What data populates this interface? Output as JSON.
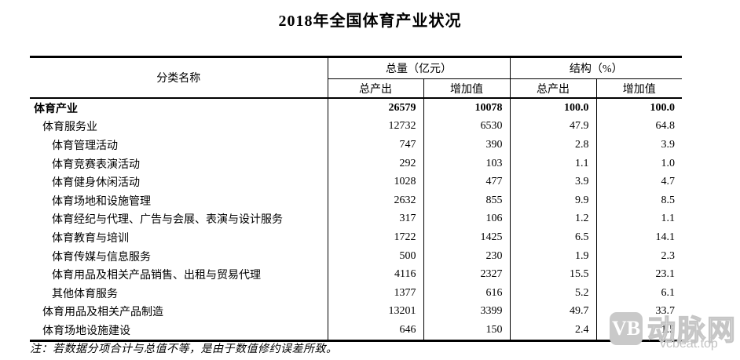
{
  "page": {
    "title": "2018年全国体育产业状况"
  },
  "table": {
    "header": {
      "category": "分类名称",
      "group_total": "总量（亿元）",
      "group_structure": "结构（%）",
      "sub_out_amt": "总产出",
      "sub_add_amt": "增加值",
      "sub_out_pct": "总产出",
      "sub_add_pct": "增加值"
    },
    "rows": [
      {
        "name": "体育产业",
        "out": "26579",
        "add": "10078",
        "pout": "100.0",
        "padd": "100.0"
      },
      {
        "name": "体育服务业",
        "out": "12732",
        "add": "6530",
        "pout": "47.9",
        "padd": "64.8"
      },
      {
        "name": "体育管理活动",
        "out": "747",
        "add": "390",
        "pout": "2.8",
        "padd": "3.9"
      },
      {
        "name": "体育竞赛表演活动",
        "out": "292",
        "add": "103",
        "pout": "1.1",
        "padd": "1.0"
      },
      {
        "name": "体育健身休闲活动",
        "out": "1028",
        "add": "477",
        "pout": "3.9",
        "padd": "4.7"
      },
      {
        "name": "体育场地和设施管理",
        "out": "2632",
        "add": "855",
        "pout": "9.9",
        "padd": "8.5"
      },
      {
        "name": "体育经纪与代理、广告与会展、表演与设计服务",
        "out": "317",
        "add": "106",
        "pout": "1.2",
        "padd": "1.1"
      },
      {
        "name": "体育教育与培训",
        "out": "1722",
        "add": "1425",
        "pout": "6.5",
        "padd": "14.1"
      },
      {
        "name": "体育传媒与信息服务",
        "out": "500",
        "add": "230",
        "pout": "1.9",
        "padd": "2.3"
      },
      {
        "name": "体育用品及相关产品销售、出租与贸易代理",
        "out": "4116",
        "add": "2327",
        "pout": "15.5",
        "padd": "23.1"
      },
      {
        "name": "其他体育服务",
        "out": "1377",
        "add": "616",
        "pout": "5.2",
        "padd": "6.1"
      },
      {
        "name": "体育用品及相关产品制造",
        "out": "13201",
        "add": "3399",
        "pout": "49.7",
        "padd": "33.7"
      },
      {
        "name": "体育场地设施建设",
        "out": "646",
        "add": "150",
        "pout": "2.4",
        "padd": "1.5"
      }
    ]
  },
  "note": "注：若数据分项合计与总值不等，是由于数值修约误差所致。",
  "watermark": {
    "logo_text": "VB",
    "site_name": "动脉网",
    "site_url": "vcbeat.top",
    "color": "#c6c6c6"
  },
  "chart_data": {
    "type": "table",
    "title": "2018年全国体育产业状况",
    "columns": [
      "分类名称",
      "总量-总产出（亿元）",
      "总量-增加值（亿元）",
      "结构-总产出（%）",
      "结构-增加值（%）"
    ],
    "rows": [
      [
        "体育产业",
        26579,
        10078,
        100.0,
        100.0
      ],
      [
        "体育服务业",
        12732,
        6530,
        47.9,
        64.8
      ],
      [
        "体育管理活动",
        747,
        390,
        2.8,
        3.9
      ],
      [
        "体育竞赛表演活动",
        292,
        103,
        1.1,
        1.0
      ],
      [
        "体育健身休闲活动",
        1028,
        477,
        3.9,
        4.7
      ],
      [
        "体育场地和设施管理",
        2632,
        855,
        9.9,
        8.5
      ],
      [
        "体育经纪与代理、广告与会展、表演与设计服务",
        317,
        106,
        1.2,
        1.1
      ],
      [
        "体育教育与培训",
        1722,
        1425,
        6.5,
        14.1
      ],
      [
        "体育传媒与信息服务",
        500,
        230,
        1.9,
        2.3
      ],
      [
        "体育用品及相关产品销售、出租与贸易代理",
        4116,
        2327,
        15.5,
        23.1
      ],
      [
        "其他体育服务",
        1377,
        616,
        5.2,
        6.1
      ],
      [
        "体育用品及相关产品制造",
        13201,
        3399,
        49.7,
        33.7
      ],
      [
        "体育场地设施建设",
        646,
        150,
        2.4,
        1.5
      ]
    ],
    "note": "注：若数据分项合计与总值不等，是由于数值修约误差所致。"
  }
}
